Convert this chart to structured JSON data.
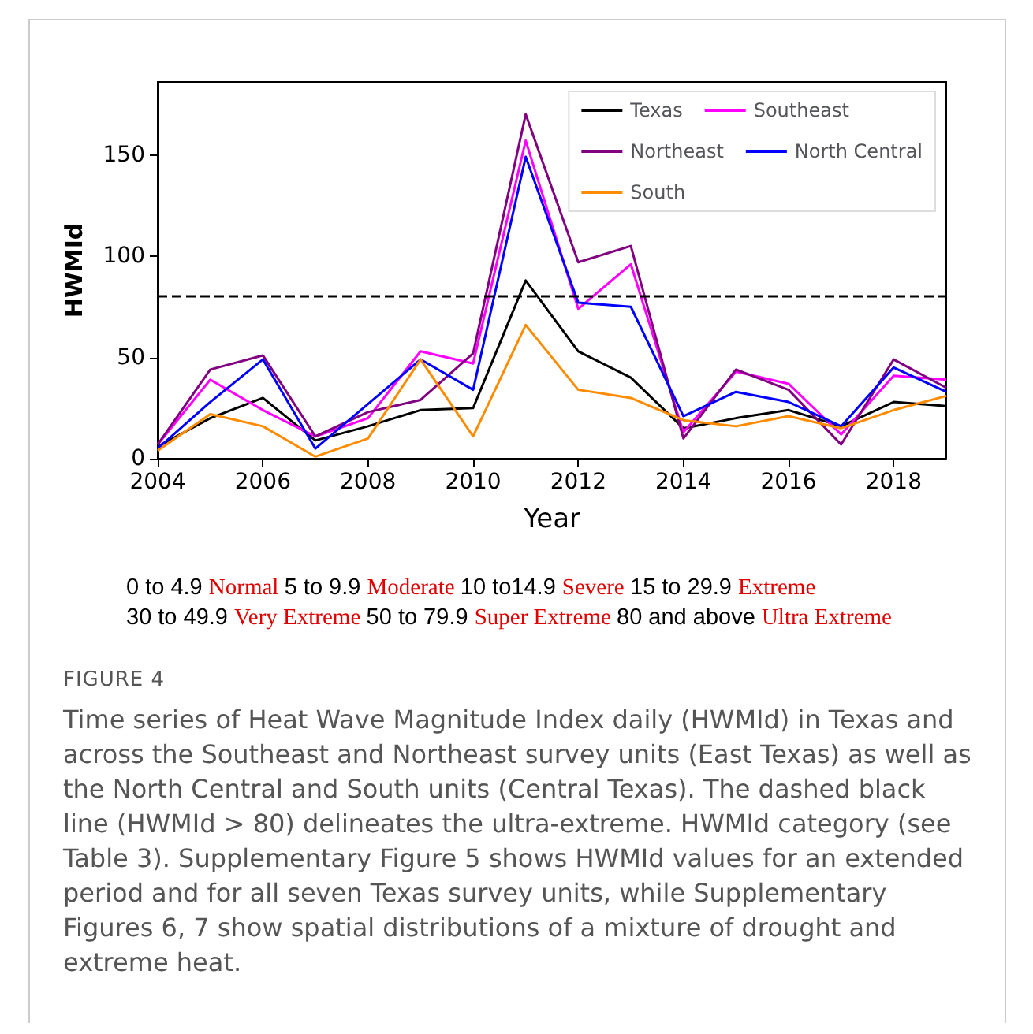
{
  "chart_data": {
    "type": "line",
    "title": "FIGURE 4",
    "subtitle": "Time series of Heat Wave Magnitude Index daily (HWMId) in Texas and across the Southeast and Northeast survey units (East Texas) as well as the North Central and South units (Central Texas). The dashed black line (HWMId > 80) delineates the ultra-extreme. HWMId category (see Table 3). Supplementary Figure 5 shows HWMId values for an extended period and for all seven Texas survey units, while Supplementary Figures 6, 7 show spatial distributions of a mixture of drought and extreme heat.",
    "xlabel": "Year",
    "ylabel": "HWMId",
    "annotations": [
      "0 to 4.9",
      "Normal",
      "5 to 9.9",
      "Moderate",
      "10 to14.9",
      "Severe",
      "15 to 29.9",
      "Extreme",
      "30 to 49.9",
      "Very Extreme",
      "50 to 79.9",
      "Super Extreme",
      "80 and above",
      "Ultra Extreme"
    ],
    "x": [
      2004,
      2005,
      2006,
      2007,
      2008,
      2009,
      2010,
      2011,
      2012,
      2013,
      2014,
      2015,
      2016,
      2017,
      2018,
      2019
    ],
    "series": [
      {
        "name": "Texas",
        "color": "#000000",
        "values": [
          6,
          20,
          30,
          9,
          16,
          24,
          25,
          88,
          53,
          40,
          15,
          20,
          24,
          16,
          28,
          26
        ]
      },
      {
        "name": "Southeast",
        "color": "#ff00ff",
        "values": [
          7,
          39,
          24,
          11,
          20,
          53,
          47,
          157,
          74,
          96,
          13,
          43,
          37,
          12,
          41,
          39
        ]
      },
      {
        "name": "Northeast",
        "color": "#800080",
        "values": [
          7,
          44,
          51,
          11,
          23,
          29,
          52,
          170,
          97,
          105,
          10,
          44,
          34,
          7,
          49,
          35
        ]
      },
      {
        "name": "North Central",
        "color": "#0000ff",
        "values": [
          5,
          28,
          49,
          5,
          27,
          49,
          34,
          149,
          77,
          75,
          21,
          33,
          28,
          16,
          45,
          33
        ]
      },
      {
        "name": "South",
        "color": "#ff8c00",
        "values": [
          4,
          22,
          16,
          1,
          10,
          49,
          11,
          66,
          34,
          30,
          19,
          16,
          21,
          15,
          24,
          31
        ]
      }
    ],
    "xlim": [
      2004,
      2019
    ],
    "xticks": [
      2004,
      2006,
      2008,
      2010,
      2012,
      2014,
      2016,
      2018
    ],
    "ylim": [
      0,
      186
    ],
    "yticks": [
      0,
      50,
      100,
      150
    ],
    "ref_lines": [
      {
        "axis": "y",
        "value": 80,
        "color": "#000000",
        "line_style": "dashed"
      }
    ],
    "legend": "top right",
    "grid": false,
    "marker": "none",
    "line_style": "solid"
  }
}
